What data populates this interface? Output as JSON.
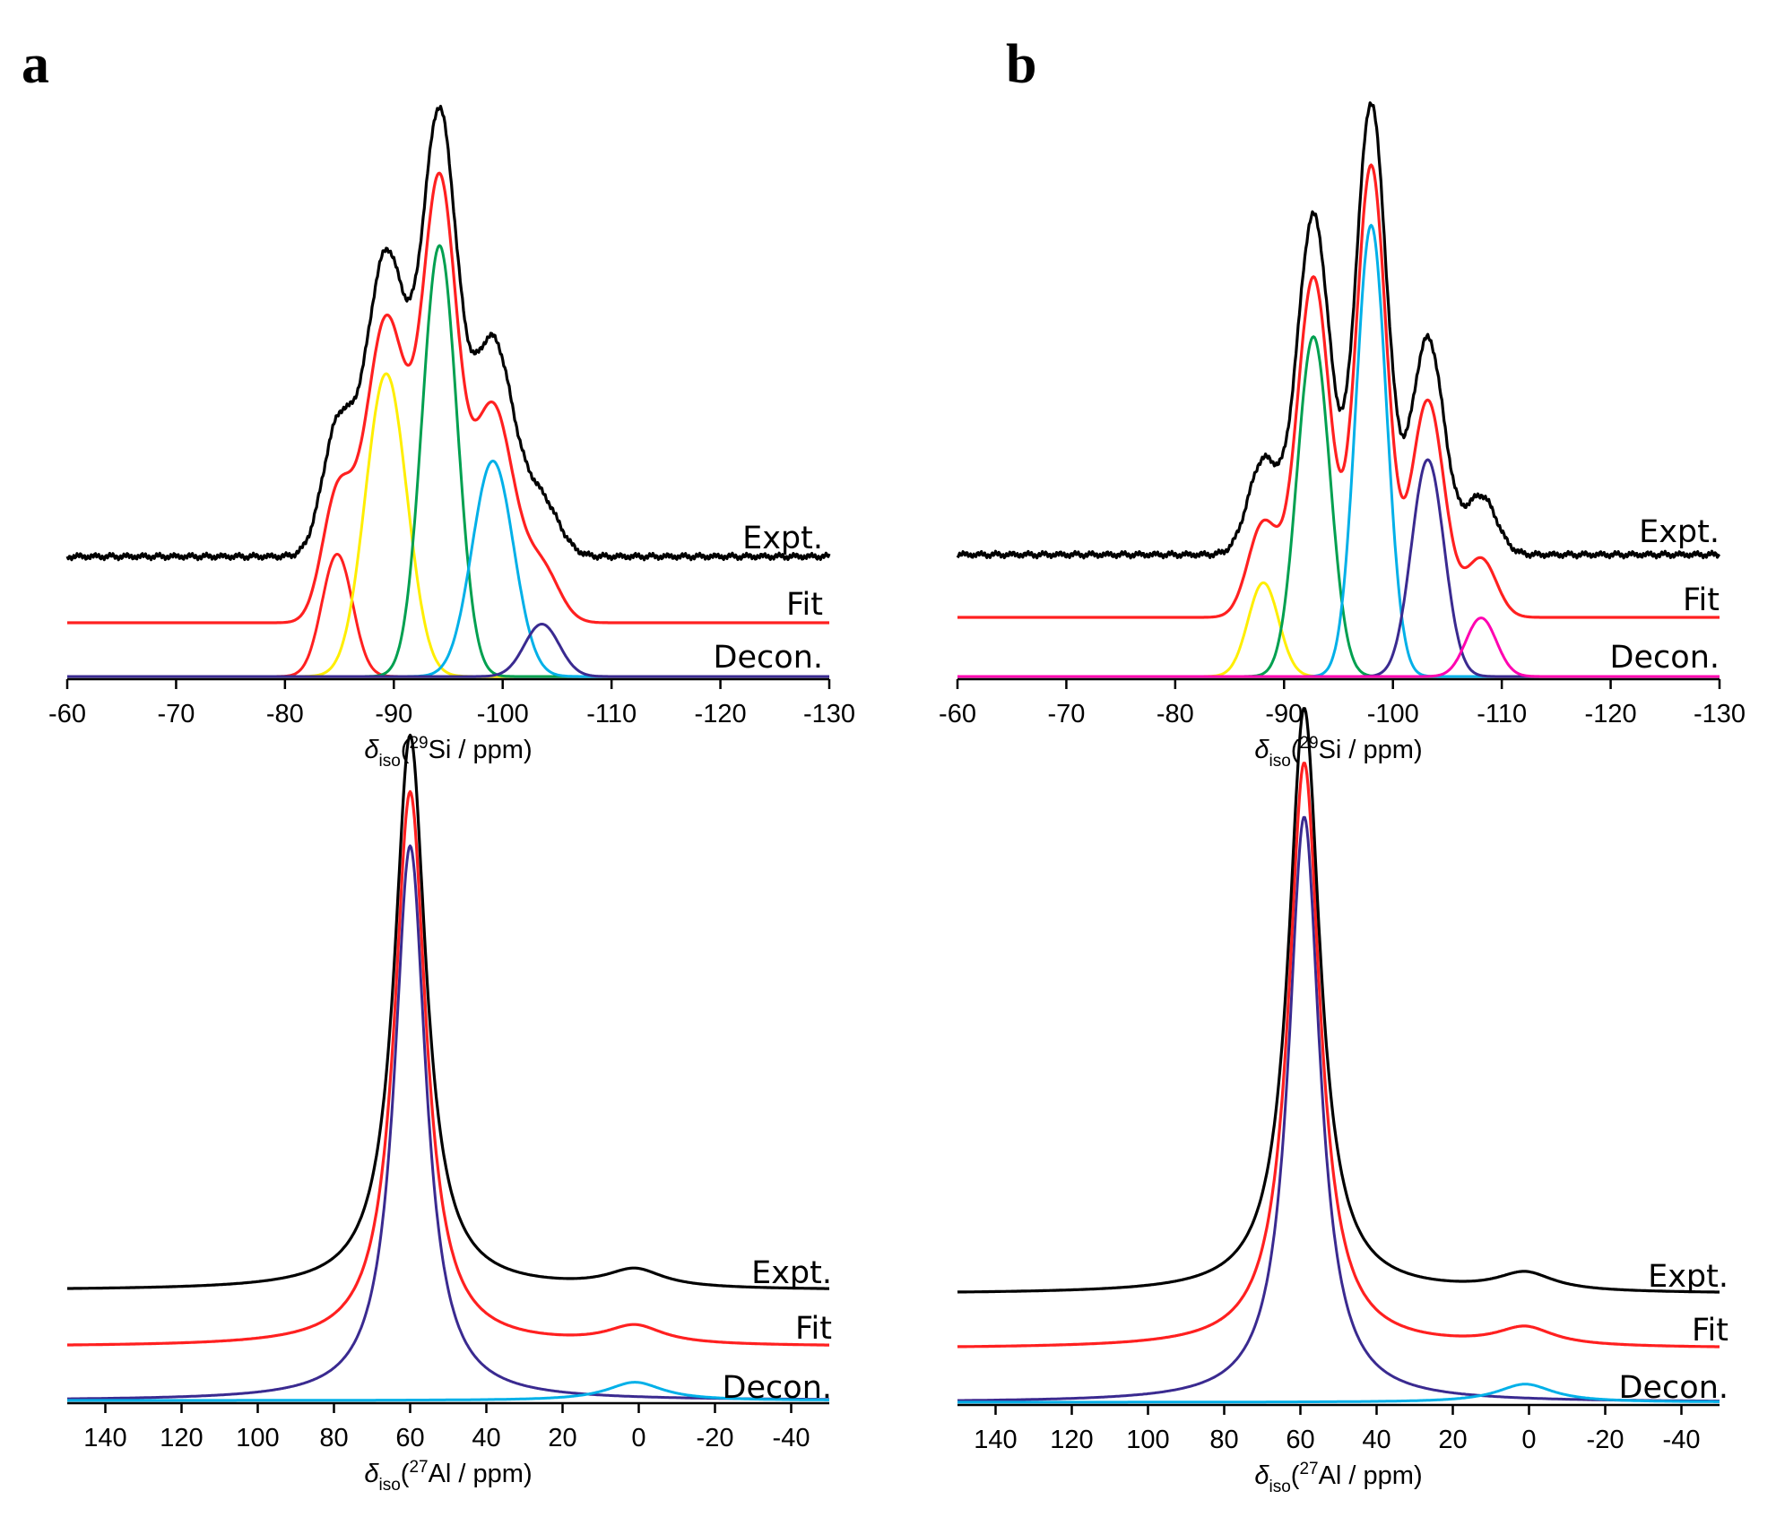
{
  "panels": [
    {
      "letter": "a"
    },
    {
      "letter": "b"
    }
  ],
  "chart_data": [
    {
      "id": "a-si",
      "panel": "a",
      "type": "line",
      "xlabel_delta": "δ",
      "xlabel_sub": "iso",
      "xlabel_open": "(",
      "xlabel_sup": "29",
      "xlabel_rest": "Si / ppm)",
      "xlim": [
        -60,
        -130
      ],
      "ticks": [
        -60,
        -70,
        -80,
        -90,
        -100,
        -110,
        -120,
        -130
      ],
      "tick_labels": [
        "-60",
        "-70",
        "-80",
        "-90",
        "-100",
        "-110",
        "-120",
        "-130"
      ],
      "trace_labels": [
        "Expt.",
        "Fit",
        "Decon."
      ],
      "series": [
        {
          "name": "Expt.",
          "color": "#000000",
          "role": "expt",
          "noise": true
        },
        {
          "name": "Fit",
          "color": "#ff2020",
          "role": "fit"
        },
        {
          "name": "Decon. 1",
          "color": "#ff2020",
          "center": -84.8,
          "height": 0.21,
          "width": 1.4
        },
        {
          "name": "Decon. 2",
          "color": "#ffee00",
          "center": -89.3,
          "height": 0.52,
          "width": 1.9
        },
        {
          "name": "Decon. 3",
          "color": "#00a050",
          "center": -94.2,
          "height": 0.74,
          "width": 1.6
        },
        {
          "name": "Decon. 4",
          "color": "#00b0e8",
          "center": -99.1,
          "height": 0.37,
          "width": 1.9
        },
        {
          "name": "Decon. 5",
          "color": "#3a2a90",
          "center": -103.6,
          "height": 0.09,
          "width": 1.6
        }
      ]
    },
    {
      "id": "b-si",
      "panel": "b",
      "type": "line",
      "xlabel_delta": "δ",
      "xlabel_sub": "iso",
      "xlabel_open": "(",
      "xlabel_sup": "29",
      "xlabel_rest": "Si / ppm)",
      "xlim": [
        -60,
        -130
      ],
      "ticks": [
        -60,
        -70,
        -80,
        -90,
        -100,
        -110,
        -120,
        -130
      ],
      "tick_labels": [
        "-60",
        "-70",
        "-80",
        "-90",
        "-100",
        "-110",
        "-120",
        "-130"
      ],
      "trace_labels": [
        "Expt.",
        "Fit",
        "Decon."
      ],
      "series": [
        {
          "name": "Expt.",
          "color": "#000000",
          "role": "expt",
          "noise": true
        },
        {
          "name": "Fit",
          "color": "#ff2020",
          "role": "fit"
        },
        {
          "name": "Decon. 1",
          "color": "#ffee00",
          "center": -88.1,
          "height": 0.16,
          "width": 1.4
        },
        {
          "name": "Decon. 2",
          "color": "#00a050",
          "center": -92.7,
          "height": 0.58,
          "width": 1.5
        },
        {
          "name": "Decon. 3",
          "color": "#00b0e8",
          "center": -98.0,
          "height": 0.77,
          "width": 1.4
        },
        {
          "name": "Decon. 4",
          "color": "#3a2a90",
          "center": -103.2,
          "height": 0.37,
          "width": 1.5
        },
        {
          "name": "Decon. 5",
          "color": "#ff00b0",
          "center": -108.1,
          "height": 0.1,
          "width": 1.4
        }
      ]
    },
    {
      "id": "a-al",
      "panel": "a",
      "type": "line",
      "xlabel_delta": "δ",
      "xlabel_sub": "iso",
      "xlabel_open": "(",
      "xlabel_sup": "27",
      "xlabel_rest": "Al / ppm)",
      "xlim": [
        150,
        -50
      ],
      "ticks": [
        140,
        120,
        100,
        80,
        60,
        40,
        20,
        0,
        -20,
        -40
      ],
      "tick_labels": [
        "140",
        "120",
        "100",
        "80",
        "60",
        "40",
        "20",
        "0",
        "-20",
        "-40"
      ],
      "trace_labels": [
        "Expt.",
        "Fit",
        "Decon."
      ],
      "series": [
        {
          "name": "Expt.",
          "color": "#000000",
          "role": "expt"
        },
        {
          "name": "Fit",
          "color": "#ff2020",
          "role": "fit"
        },
        {
          "name": "Decon. 1",
          "color": "#3a2a90",
          "center": 60,
          "height": 0.82,
          "width": 5,
          "shape": "lorentz"
        },
        {
          "name": "Decon. 2",
          "color": "#00b0e8",
          "center": 1,
          "height": 0.027,
          "width": 9,
          "shape": "lorentz"
        }
      ]
    },
    {
      "id": "b-al",
      "panel": "b",
      "type": "line",
      "xlabel_delta": "δ",
      "xlabel_sub": "iso",
      "xlabel_open": "(",
      "xlabel_sup": "27",
      "xlabel_rest": "Al / ppm)",
      "xlim": [
        150,
        -50
      ],
      "ticks": [
        140,
        120,
        100,
        80,
        60,
        40,
        20,
        0,
        -20,
        -40
      ],
      "tick_labels": [
        "140",
        "120",
        "100",
        "80",
        "60",
        "40",
        "20",
        "0",
        "-20",
        "-40"
      ],
      "trace_labels": [
        "Expt.",
        "Fit",
        "Decon."
      ],
      "series": [
        {
          "name": "Expt.",
          "color": "#000000",
          "role": "expt"
        },
        {
          "name": "Fit",
          "color": "#ff2020",
          "role": "fit"
        },
        {
          "name": "Decon. 1",
          "color": "#3a2a90",
          "center": 59,
          "height": 0.87,
          "width": 5,
          "shape": "lorentz"
        },
        {
          "name": "Decon. 2",
          "color": "#00b0e8",
          "center": 1,
          "height": 0.027,
          "width": 9,
          "shape": "lorentz"
        }
      ]
    }
  ]
}
